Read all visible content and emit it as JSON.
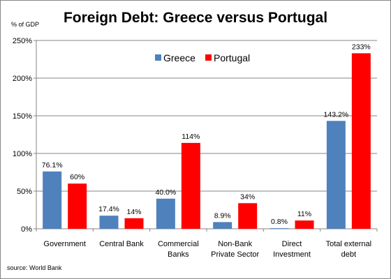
{
  "chart_data": {
    "type": "bar",
    "title": "Foreign Debt: Greece versus Portugal",
    "ylabel": "% of GDP",
    "ylim": [
      0,
      250
    ],
    "yticks": [
      "0%",
      "50%",
      "100%",
      "150%",
      "200%",
      "250%"
    ],
    "ytick_values": [
      0,
      50,
      100,
      150,
      200,
      250
    ],
    "grid": true,
    "legend_position": "top-center",
    "categories": [
      [
        "Government"
      ],
      [
        "Central Bank"
      ],
      [
        "Commercial",
        "Banks"
      ],
      [
        "Non-Bank",
        "Private Sector"
      ],
      [
        "Direct",
        "Investment"
      ],
      [
        "Total external",
        "debt"
      ]
    ],
    "series": [
      {
        "name": "Greece",
        "color": "#4F81BD",
        "values": [
          76.1,
          17.4,
          40.0,
          8.9,
          0.8,
          143.2
        ],
        "labels": [
          "76.1%",
          "17.4%",
          "40.0%",
          "8.9%",
          "0.8%",
          "143.2%"
        ]
      },
      {
        "name": "Portugal",
        "color": "#FF0000",
        "values": [
          60,
          14,
          114,
          34,
          11,
          233
        ],
        "labels": [
          "60%",
          "14%",
          "114%",
          "34%",
          "11%",
          "233%"
        ]
      }
    ],
    "source": "source: World Bank"
  }
}
